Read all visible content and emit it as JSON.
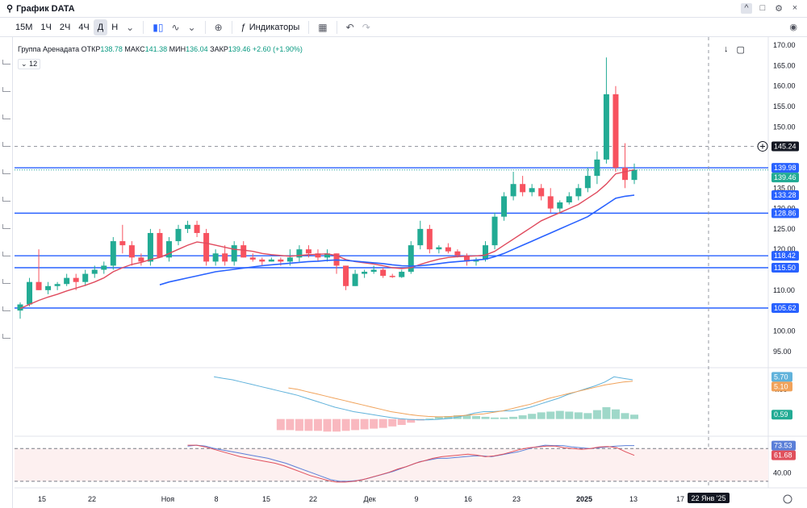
{
  "window": {
    "title": "График DATA",
    "controls": [
      "^",
      "□",
      "⚙",
      "×"
    ]
  },
  "toolbar": {
    "timeframes": [
      "15M",
      "1Ч",
      "2Ч",
      "4Ч",
      "Д",
      "Н"
    ],
    "active_timeframe": "Д",
    "indicators_label": "Индикаторы"
  },
  "legend": {
    "name": "Группа Аренадата",
    "open_label": "ОТКР",
    "open": "138.78",
    "high_label": "МАКС",
    "high": "141.38",
    "low_label": "МИН",
    "low": "136.04",
    "close_label": "ЗАКР",
    "close": "139.46",
    "change": "+2.60 (+1.90%)",
    "sub_value": "12"
  },
  "colors": {
    "up": "#22ab94",
    "down": "#f7525f",
    "ma_fast": "#e04b5e",
    "ma_slow": "#2962ff",
    "hline": "#2962ff",
    "macd": "#60b2db",
    "signal": "#f0a25a",
    "rsi_a": "#5b7fd8",
    "rsi_b": "#e0505c"
  },
  "chart_data": {
    "type": "candlestick",
    "y_axis_ticks": [
      "170.00",
      "165.00",
      "160.00",
      "155.00",
      "150.00",
      "145.00",
      "140.00",
      "135.00",
      "130.00",
      "125.00",
      "120.00",
      "115.00",
      "110.00",
      "105.00",
      "100.00",
      "95.00"
    ],
    "ylim": [
      91,
      172
    ],
    "x_axis_labels": [
      "15",
      "22",
      "Ноя",
      "8",
      "15",
      "22",
      "Дек",
      "9",
      "16",
      "23",
      "2025",
      "13",
      "17",
      "22 Янв '25"
    ],
    "candles": [
      {
        "o": 105,
        "h": 107,
        "l": 103,
        "c": 106.5
      },
      {
        "o": 106.5,
        "h": 113,
        "l": 106,
        "c": 112
      },
      {
        "o": 112,
        "h": 120,
        "l": 110,
        "c": 110
      },
      {
        "o": 110,
        "h": 112,
        "l": 109,
        "c": 111
      },
      {
        "o": 111,
        "h": 112,
        "l": 110,
        "c": 111.5
      },
      {
        "o": 111.5,
        "h": 114,
        "l": 111,
        "c": 113
      },
      {
        "o": 113,
        "h": 114,
        "l": 110,
        "c": 112
      },
      {
        "o": 112,
        "h": 115,
        "l": 111,
        "c": 114
      },
      {
        "o": 114,
        "h": 116,
        "l": 113,
        "c": 115
      },
      {
        "o": 115,
        "h": 117,
        "l": 114,
        "c": 116
      },
      {
        "o": 116,
        "h": 123,
        "l": 115,
        "c": 122
      },
      {
        "o": 122,
        "h": 126,
        "l": 119,
        "c": 121
      },
      {
        "o": 121,
        "h": 122,
        "l": 116,
        "c": 118
      },
      {
        "o": 118,
        "h": 119,
        "l": 116,
        "c": 117
      },
      {
        "o": 117,
        "h": 125,
        "l": 116,
        "c": 124
      },
      {
        "o": 124,
        "h": 125,
        "l": 118,
        "c": 118
      },
      {
        "o": 118,
        "h": 123,
        "l": 117,
        "c": 122
      },
      {
        "o": 122,
        "h": 126,
        "l": 121,
        "c": 125
      },
      {
        "o": 125,
        "h": 127,
        "l": 124,
        "c": 126
      },
      {
        "o": 126,
        "h": 127,
        "l": 123,
        "c": 124
      },
      {
        "o": 124,
        "h": 125,
        "l": 116,
        "c": 117
      },
      {
        "o": 117,
        "h": 120,
        "l": 116,
        "c": 119
      },
      {
        "o": 119,
        "h": 121,
        "l": 116,
        "c": 117
      },
      {
        "o": 117,
        "h": 122,
        "l": 116,
        "c": 121
      },
      {
        "o": 121,
        "h": 122,
        "l": 118,
        "c": 118
      },
      {
        "o": 118,
        "h": 119,
        "l": 117,
        "c": 117.5
      },
      {
        "o": 117.5,
        "h": 118,
        "l": 116,
        "c": 117
      },
      {
        "o": 117,
        "h": 118,
        "l": 117,
        "c": 117.5
      },
      {
        "o": 117.5,
        "h": 118,
        "l": 116,
        "c": 117
      },
      {
        "o": 117,
        "h": 120,
        "l": 116,
        "c": 118
      },
      {
        "o": 118,
        "h": 121,
        "l": 117,
        "c": 120
      },
      {
        "o": 120,
        "h": 121,
        "l": 118,
        "c": 119
      },
      {
        "o": 119,
        "h": 120,
        "l": 117,
        "c": 118
      },
      {
        "o": 118,
        "h": 120,
        "l": 117,
        "c": 119
      },
      {
        "o": 119,
        "h": 119,
        "l": 114,
        "c": 116
      },
      {
        "o": 116,
        "h": 116,
        "l": 110,
        "c": 111
      },
      {
        "o": 111,
        "h": 115,
        "l": 111,
        "c": 114
      },
      {
        "o": 114,
        "h": 115,
        "l": 113,
        "c": 114.5
      },
      {
        "o": 114.5,
        "h": 116,
        "l": 114,
        "c": 115
      },
      {
        "o": 115,
        "h": 115.5,
        "l": 113,
        "c": 113.5
      },
      {
        "o": 113.5,
        "h": 114,
        "l": 113,
        "c": 113.2
      },
      {
        "o": 113.2,
        "h": 115,
        "l": 113,
        "c": 114.5
      },
      {
        "o": 114.5,
        "h": 122,
        "l": 114,
        "c": 121
      },
      {
        "o": 121,
        "h": 127,
        "l": 120,
        "c": 125
      },
      {
        "o": 125,
        "h": 126,
        "l": 119,
        "c": 120
      },
      {
        "o": 120,
        "h": 121,
        "l": 119,
        "c": 120.5
      },
      {
        "o": 120.5,
        "h": 121.5,
        "l": 119,
        "c": 119.5
      },
      {
        "o": 119.5,
        "h": 120,
        "l": 118,
        "c": 118.5
      },
      {
        "o": 118.5,
        "h": 119,
        "l": 116,
        "c": 117
      },
      {
        "o": 117,
        "h": 118,
        "l": 116,
        "c": 117.5
      },
      {
        "o": 117.5,
        "h": 122,
        "l": 117,
        "c": 121
      },
      {
        "o": 121,
        "h": 129,
        "l": 120,
        "c": 128
      },
      {
        "o": 128,
        "h": 134,
        "l": 127,
        "c": 133
      },
      {
        "o": 133,
        "h": 139,
        "l": 132,
        "c": 136
      },
      {
        "o": 136,
        "h": 138,
        "l": 133,
        "c": 134
      },
      {
        "o": 134,
        "h": 136,
        "l": 133,
        "c": 135
      },
      {
        "o": 135,
        "h": 136,
        "l": 132,
        "c": 133
      },
      {
        "o": 133,
        "h": 135,
        "l": 129,
        "c": 130
      },
      {
        "o": 130,
        "h": 132,
        "l": 129,
        "c": 131.5
      },
      {
        "o": 131.5,
        "h": 134,
        "l": 131,
        "c": 133
      },
      {
        "o": 133,
        "h": 136,
        "l": 132,
        "c": 135
      },
      {
        "o": 135,
        "h": 140,
        "l": 134,
        "c": 138
      },
      {
        "o": 138,
        "h": 144,
        "l": 136,
        "c": 142
      },
      {
        "o": 142,
        "h": 167,
        "l": 141,
        "c": 158
      },
      {
        "o": 158,
        "h": 160,
        "l": 139,
        "c": 140
      },
      {
        "o": 140,
        "h": 146,
        "l": 135,
        "c": 137
      },
      {
        "o": 137,
        "h": 141,
        "l": 136,
        "c": 139.5
      }
    ],
    "ma_fast": [
      105.5,
      106.5,
      107.5,
      108.3,
      109,
      109.8,
      110.5,
      111.2,
      112,
      113,
      114.5,
      115.5,
      116.3,
      116.8,
      117.5,
      118,
      119,
      120,
      121,
      121.8,
      121.5,
      121,
      120.5,
      120,
      119.8,
      119.5,
      119,
      118.7,
      118.5,
      118.3,
      118.5,
      118.7,
      118.8,
      118.9,
      118.5,
      117.5,
      117,
      116.7,
      116.4,
      116,
      115.5,
      115.3,
      115.5,
      116.3,
      117,
      117.6,
      118,
      118.2,
      118.3,
      118.4,
      118.6,
      119.5,
      121,
      122.5,
      124,
      125.5,
      127,
      128,
      129,
      130,
      131,
      132.5,
      134,
      136,
      138.5,
      139,
      139.5
    ],
    "ma_slow": [
      null,
      null,
      null,
      null,
      null,
      null,
      null,
      null,
      null,
      null,
      null,
      null,
      null,
      null,
      null,
      111.3,
      112,
      112.5,
      113,
      113.5,
      114,
      114.5,
      114.8,
      115.1,
      115.4,
      115.7,
      116,
      116.2,
      116.4,
      116.6,
      116.8,
      117,
      117.1,
      117.3,
      117.4,
      117.3,
      117.1,
      116.9,
      116.7,
      116.5,
      116.2,
      116,
      115.9,
      116,
      116.2,
      116.5,
      116.8,
      117,
      117.2,
      117.4,
      117.6,
      118.2,
      119,
      120,
      121,
      122,
      123,
      124,
      125,
      126,
      127,
      128,
      129.5,
      131,
      132.5,
      133,
      133.28
    ],
    "hlines": [
      {
        "value": 139.98,
        "label": "139.98"
      },
      {
        "value": 128.86,
        "label": "128.86"
      },
      {
        "value": 118.42,
        "label": "118.42"
      },
      {
        "value": 115.5,
        "label": "115.50"
      },
      {
        "value": 105.62,
        "label": "105.62"
      }
    ],
    "price_tags": [
      {
        "value": 145.24,
        "label": "145.24",
        "kind": "crosshair"
      },
      {
        "value": 139.98,
        "label": "139.98",
        "kind": "line"
      },
      {
        "value": 139.46,
        "label": "139.46",
        "kind": "last"
      },
      {
        "value": 133.28,
        "label": "133.28",
        "kind": "ma"
      },
      {
        "value": 128.86,
        "label": "128.86",
        "kind": "line"
      },
      {
        "value": 118.42,
        "label": "118.42",
        "kind": "line"
      },
      {
        "value": 115.5,
        "label": "115.50",
        "kind": "line"
      },
      {
        "value": 105.62,
        "label": "105.62",
        "kind": "line"
      }
    ],
    "macd_pane": {
      "ticks": [
        "4.00"
      ],
      "tags": [
        {
          "label": "5.70",
          "color": "#60b2db"
        },
        {
          "label": "5.10",
          "color": "#f0a25a"
        },
        {
          "label": "0.59",
          "color": "#22ab94"
        }
      ],
      "ylim": [
        -2,
        6.5
      ],
      "macd": [
        null,
        null,
        null,
        null,
        null,
        null,
        null,
        null,
        null,
        null,
        null,
        null,
        null,
        null,
        null,
        null,
        null,
        null,
        null,
        null,
        null,
        null,
        null,
        null,
        null,
        null,
        5.7,
        5.5,
        5.3,
        5.0,
        4.7,
        4.4,
        4.1,
        3.8,
        3.5,
        3.2,
        2.8,
        2.4,
        2.0,
        1.6,
        1.3,
        1.0,
        0.8,
        0.6,
        0.4,
        0.2,
        0.05,
        -0.05,
        -0.1,
        -0.1,
        -0.05,
        0.05,
        0.2,
        0.5,
        0.8,
        1.0,
        1.0,
        1.1,
        1.1,
        1.3,
        1.6,
        2.0,
        2.4,
        2.8,
        3.3,
        3.7,
        4.1,
        4.5,
        5.0,
        5.7,
        5.5,
        5.3
      ],
      "signal": [
        null,
        null,
        null,
        null,
        null,
        null,
        null,
        null,
        null,
        null,
        null,
        null,
        null,
        null,
        null,
        null,
        null,
        null,
        null,
        null,
        null,
        null,
        null,
        null,
        null,
        null,
        null,
        null,
        null,
        null,
        null,
        null,
        null,
        null,
        null,
        null,
        null,
        null,
        null,
        null,
        null,
        4.2,
        4.0,
        3.7,
        3.4,
        3.1,
        2.8,
        2.5,
        2.2,
        1.9,
        1.6,
        1.3,
        1.0,
        0.8,
        0.6,
        0.45,
        0.35,
        0.3,
        0.3,
        0.4,
        0.5,
        0.6,
        0.7,
        0.9,
        1.1,
        1.4,
        1.7,
        2.0,
        2.4,
        2.8,
        3.1,
        3.4,
        3.7,
        4.0,
        4.3,
        4.6,
        4.8,
        5.0,
        5.1
      ],
      "hist": [
        -1.5,
        -1.5,
        -1.6,
        -1.6,
        -1.6,
        -1.7,
        -1.7,
        -1.6,
        -1.5,
        -1.4,
        -1.3,
        -1.2,
        -1.0,
        -0.8,
        -0.5,
        -0.2,
        0.1,
        0.3,
        0.4,
        0.5,
        0.5,
        0.4,
        0.3,
        0.2,
        0.2,
        0.3,
        0.5,
        0.7,
        0.9,
        1.0,
        1.1,
        1.0,
        0.9,
        0.8,
        1.2,
        1.6,
        1.3,
        0.8,
        0.59
      ]
    },
    "rsi_pane": {
      "ticks": [
        "40.00"
      ],
      "tags": [
        {
          "label": "73.53",
          "color": "#5b7fd8"
        },
        {
          "label": "61.68",
          "color": "#e0505c"
        }
      ],
      "ylim": [
        25,
        82
      ],
      "upper": 70,
      "lower": 30,
      "line_a": [
        null,
        null,
        null,
        null,
        null,
        null,
        null,
        null,
        null,
        null,
        null,
        null,
        null,
        null,
        null,
        null,
        null,
        null,
        null,
        null,
        null,
        null,
        null,
        null,
        null,
        null,
        null,
        null,
        null,
        null,
        null,
        null,
        null,
        null,
        null,
        null,
        null,
        null,
        null,
        null,
        null,
        null,
        null,
        null,
        null,
        null,
        null,
        null,
        null,
        null,
        null,
        null,
        null,
        null,
        null,
        null,
        null,
        null,
        null,
        null,
        null,
        null,
        null,
        null,
        null,
        null,
        null
      ],
      "line_b": []
    }
  }
}
